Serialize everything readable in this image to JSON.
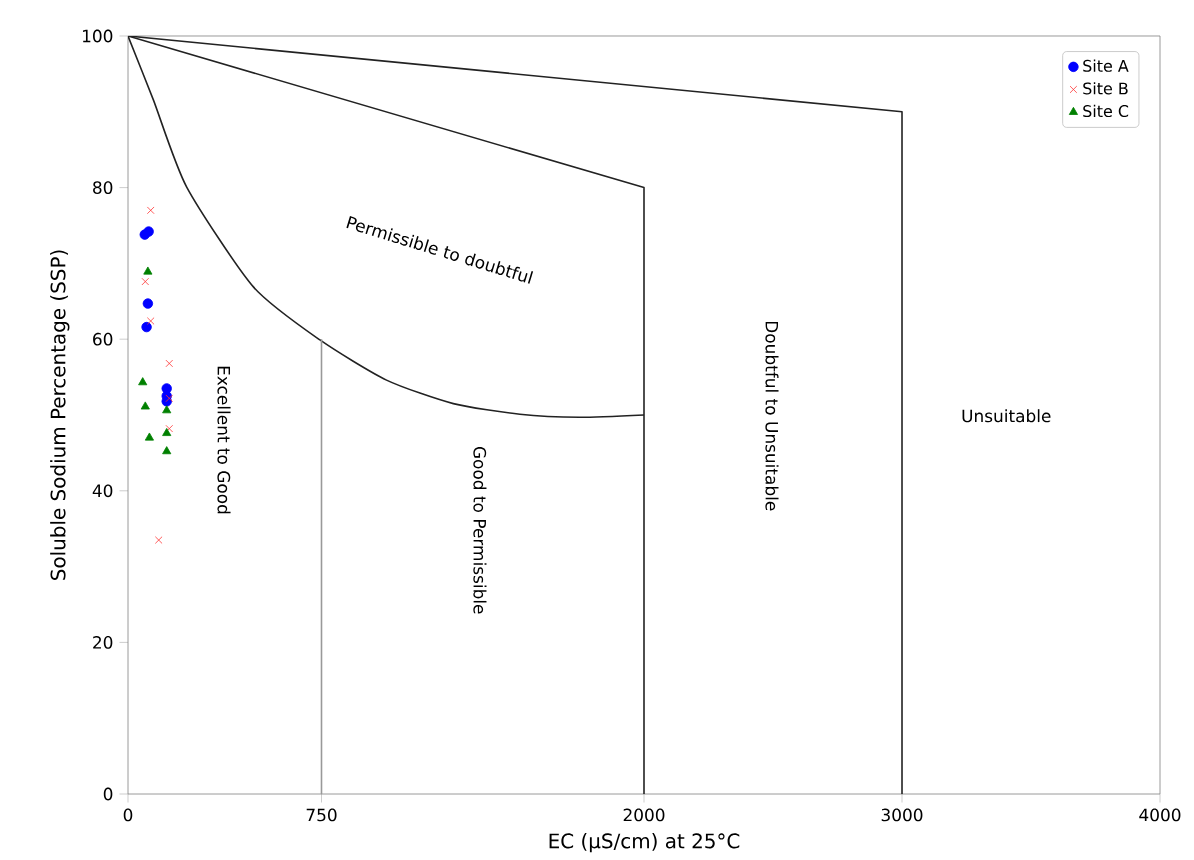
{
  "chart_data": {
    "type": "scatter",
    "xlabel": "EC (µS/cm) at 25°C",
    "ylabel": "Soluble Sodium Percentage (SSP)",
    "xlim": [
      0,
      4000
    ],
    "ylim": [
      0,
      100
    ],
    "xticks": [
      0,
      750,
      2000,
      3000,
      4000
    ],
    "yticks": [
      0,
      20,
      40,
      60,
      80,
      100
    ],
    "legend": "top right",
    "grid": false,
    "series": [
      {
        "name": "Site A",
        "color": "#0000ff",
        "marker": "circle",
        "x": [
          65,
          80,
          77,
          72,
          150,
          150,
          150
        ],
        "values": [
          73.8,
          74.2,
          64.7,
          61.6,
          53.5,
          52.5,
          51.8
        ]
      },
      {
        "name": "Site B",
        "color": "#ff3333",
        "marker": "cross",
        "x": [
          88,
          67,
          88,
          160,
          160,
          160,
          119
        ],
        "values": [
          77.0,
          67.6,
          62.4,
          56.8,
          52.2,
          48.2,
          33.5
        ]
      },
      {
        "name": "Site C",
        "color": "#008000",
        "marker": "triangle",
        "x": [
          77,
          57,
          67,
          150,
          83,
          150,
          150
        ],
        "values": [
          68.9,
          54.3,
          51.1,
          50.6,
          47.0,
          47.6,
          45.2
        ]
      },
      {
        "type": "line",
        "color": "#222222",
        "marker": "none",
        "x": [
          0,
          3000,
          3000
        ],
        "values": [
          100,
          90,
          0
        ]
      },
      {
        "type": "line",
        "color": "#222222",
        "marker": "none",
        "x": [
          0,
          2000,
          2000
        ],
        "values": [
          100,
          80,
          0
        ]
      },
      {
        "type": "line",
        "color": "#222222",
        "marker": "none",
        "x": [
          0,
          98,
          227,
          486,
          744,
          1002,
          1261,
          1519,
          1750,
          2000
        ],
        "values": [
          100,
          91.6,
          80.1,
          66.9,
          59.9,
          54.6,
          51.5,
          50.1,
          49.7,
          50
        ]
      },
      {
        "type": "line",
        "color": "#999999",
        "marker": "none",
        "x": [
          750,
          750
        ],
        "values": [
          60,
          0
        ]
      }
    ],
    "annotations": [
      "Permissible to doubtful",
      "Excellent to Good",
      "Good to Permissible",
      "Doubtful to Unsuitable",
      "Unsuitable"
    ]
  }
}
